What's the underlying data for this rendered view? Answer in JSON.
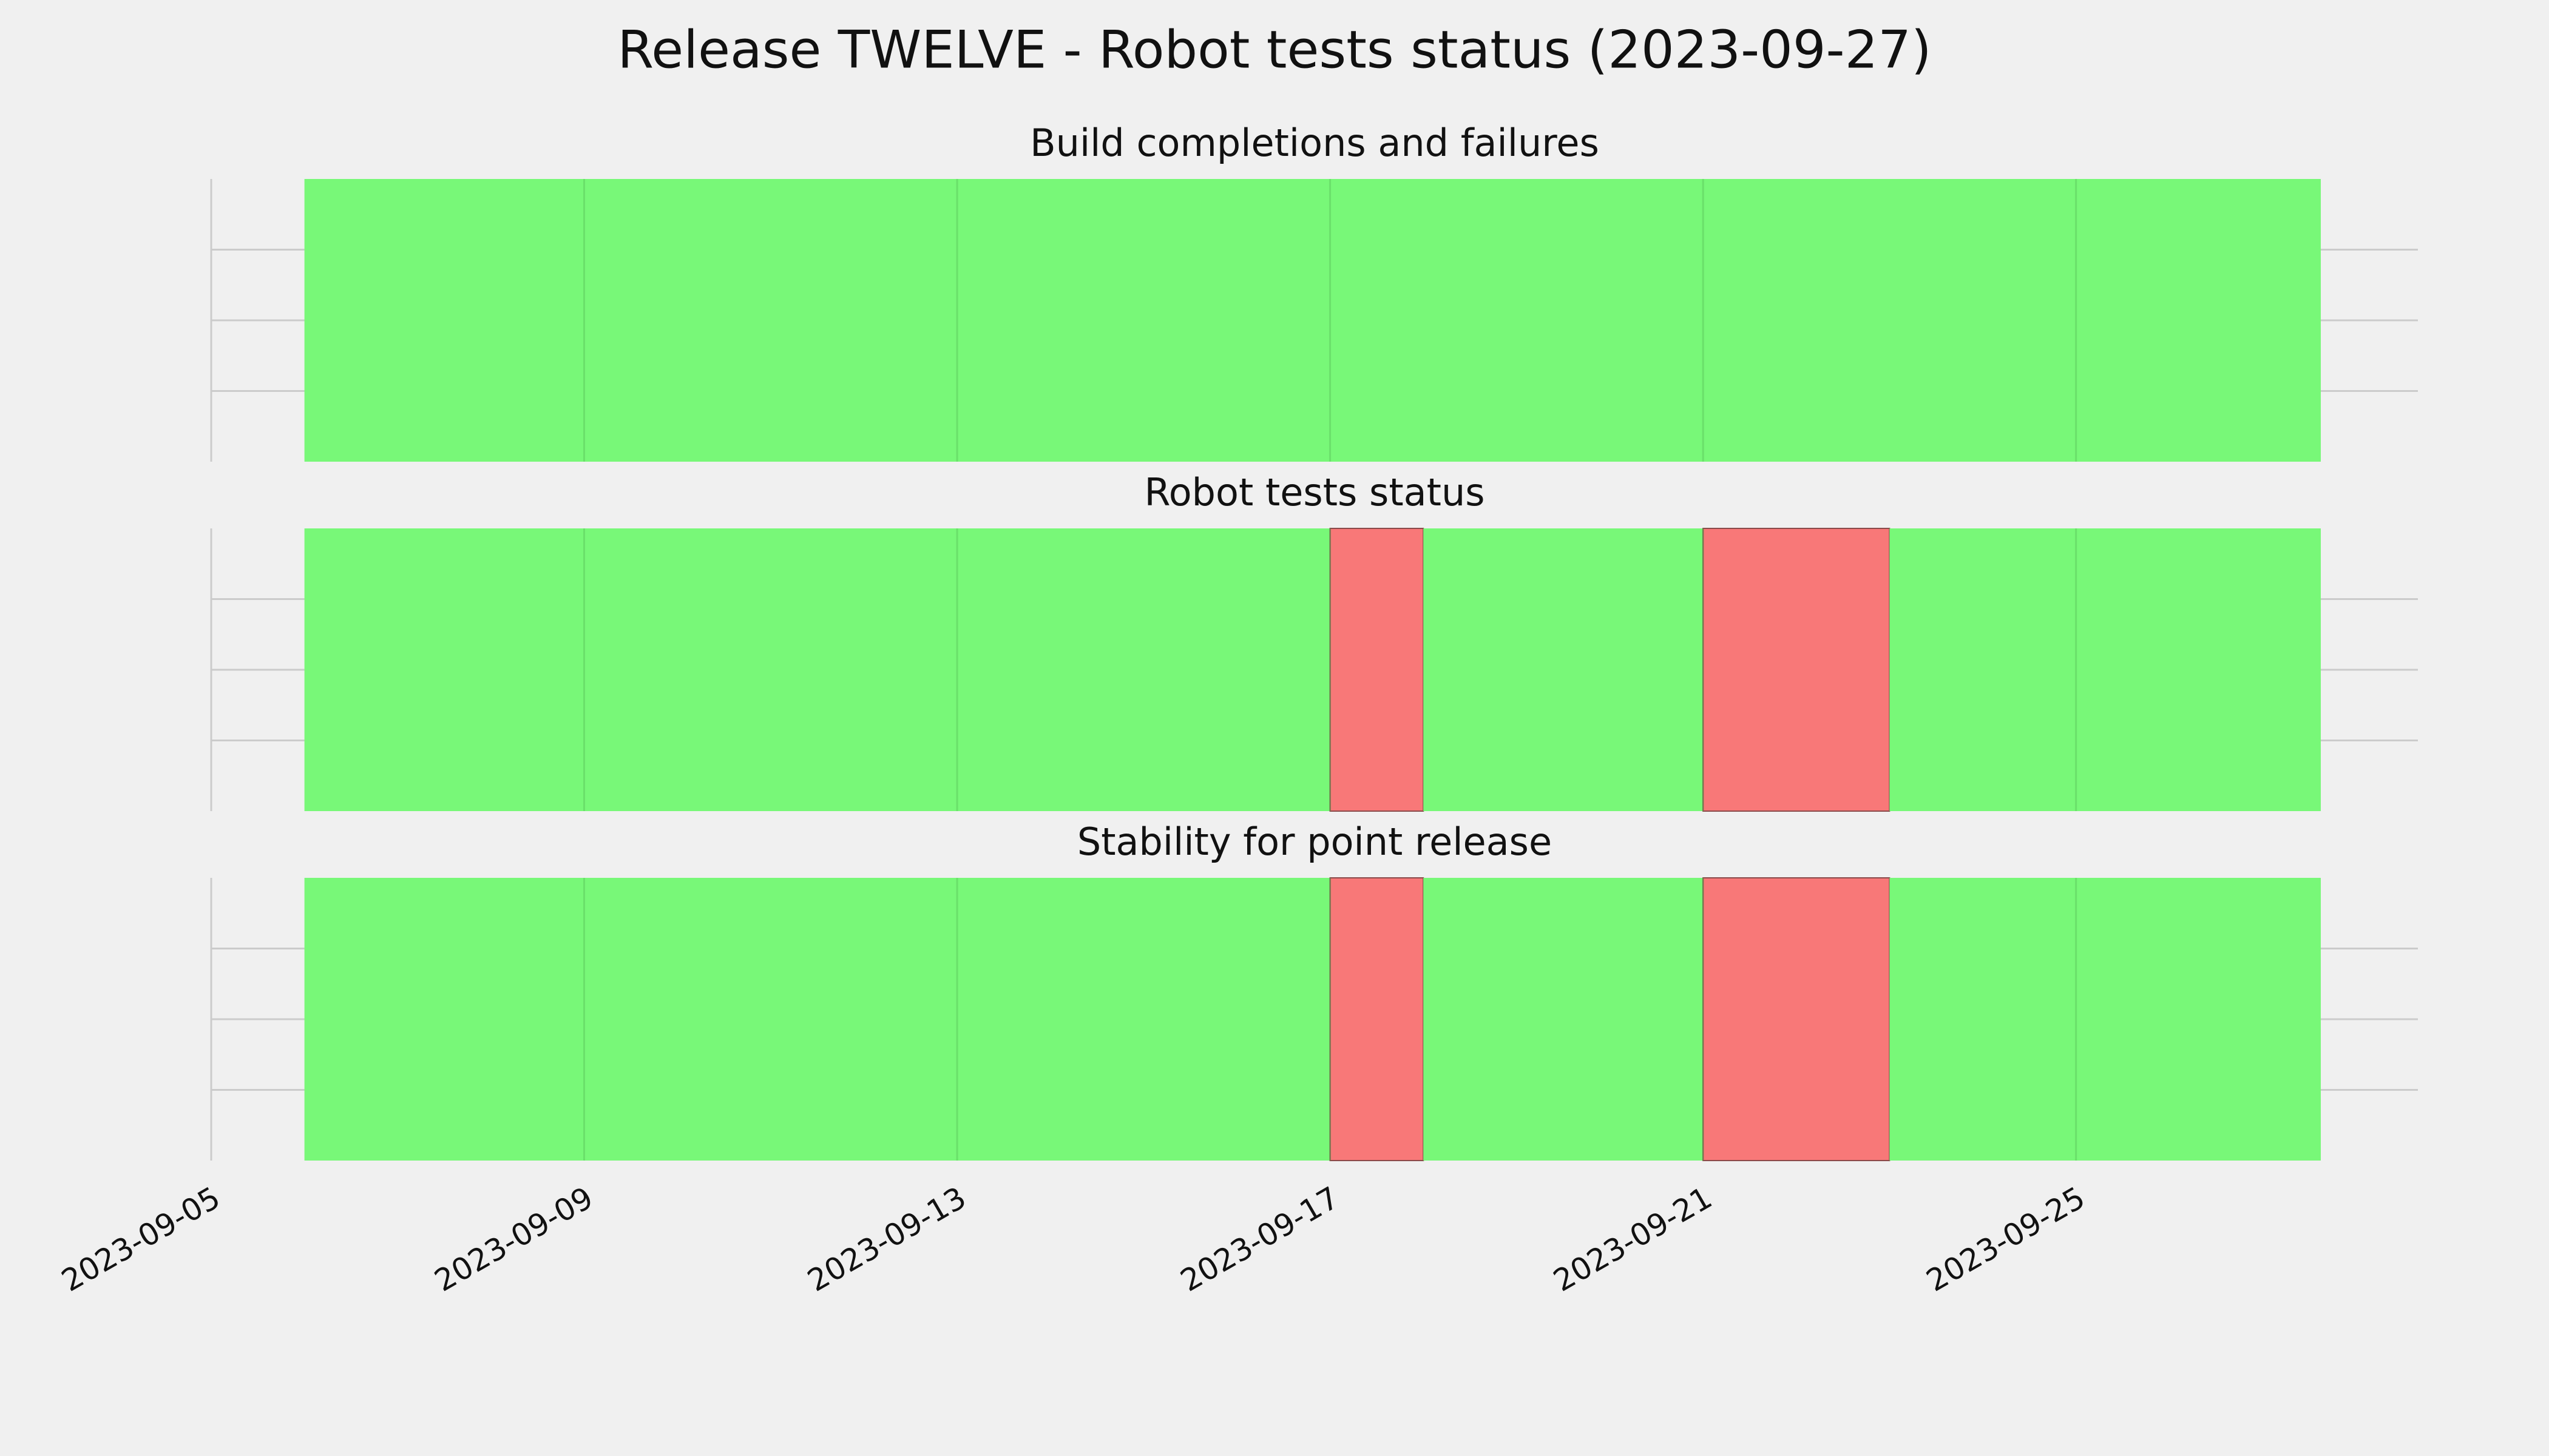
{
  "chart_data": [
    {
      "type": "timeline",
      "suptitle": "Release TWELVE - Robot tests status (2023-09-27)",
      "title": "Build completions and failures",
      "xlim": [
        "2023-09-05",
        "2023-09-28T16:00"
      ],
      "xticks": [
        "2023-09-05",
        "2023-09-09",
        "2023-09-13",
        "2023-09-17",
        "2023-09-21",
        "2023-09-25"
      ],
      "ylim": [
        0,
        1
      ],
      "yticks": [
        0.25,
        0.5,
        0.75
      ],
      "grid": true,
      "spans": [
        {
          "start": "2023-09-06",
          "end": "2023-09-27T15:00",
          "color": "#78f878"
        }
      ]
    },
    {
      "type": "timeline",
      "title": "Robot tests status",
      "xlim": [
        "2023-09-05",
        "2023-09-28T16:00"
      ],
      "ylim": [
        0,
        1
      ],
      "yticks": [
        0.25,
        0.5,
        0.75
      ],
      "grid": true,
      "spans": [
        {
          "start": "2023-09-06",
          "end": "2023-09-17",
          "color": "#78f878"
        },
        {
          "start": "2023-09-17",
          "end": "2023-09-18",
          "color": "#f87878"
        },
        {
          "start": "2023-09-18",
          "end": "2023-09-21",
          "color": "#78f878"
        },
        {
          "start": "2023-09-21",
          "end": "2023-09-23",
          "color": "#f87878"
        },
        {
          "start": "2023-09-23",
          "end": "2023-09-27T15:00",
          "color": "#78f878"
        }
      ]
    },
    {
      "type": "timeline",
      "title": "Stability for point release",
      "xlim": [
        "2023-09-05",
        "2023-09-28T16:00"
      ],
      "ylim": [
        0,
        1
      ],
      "yticks": [
        0.25,
        0.5,
        0.75
      ],
      "grid": true,
      "spans": [
        {
          "start": "2023-09-06",
          "end": "2023-09-17",
          "color": "#78f878"
        },
        {
          "start": "2023-09-17",
          "end": "2023-09-18",
          "color": "#f87878"
        },
        {
          "start": "2023-09-18",
          "end": "2023-09-21",
          "color": "#78f878"
        },
        {
          "start": "2023-09-21",
          "end": "2023-09-23",
          "color": "#f87878"
        },
        {
          "start": "2023-09-23",
          "end": "2023-09-27T15:00",
          "color": "#78f878"
        }
      ]
    }
  ]
}
